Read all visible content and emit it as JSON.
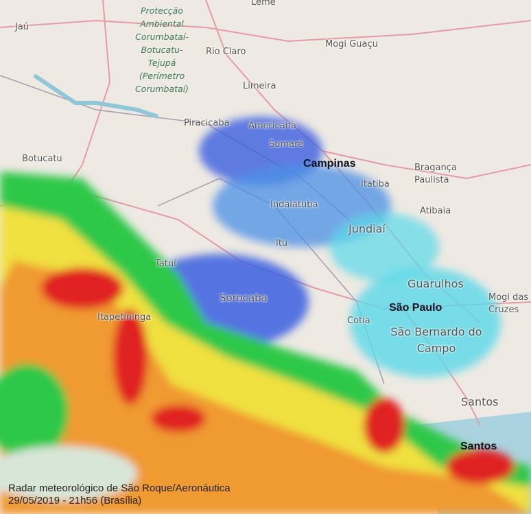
{
  "map": {
    "town_labels": [
      "Leme",
      "Jaú",
      "Rio Claro",
      "Mogi Guaçu",
      "Limeira",
      "Piracicaba",
      "Americana",
      "Sumaré",
      "Botucatu",
      "Itatiba",
      "Bragança Paulista",
      "Indaiatuba",
      "Atibaia",
      "Jundiaí",
      "Itu",
      "Tatuí",
      "Sorocaba",
      "Guarulhos",
      "Mogi das Cruzes",
      "Cotia",
      "São Bernardo do Campo",
      "Itapetininga",
      "Santos"
    ],
    "park_label": "Protecção Ambiental Corumbataí-Botucatu-Tejupá (Perímetro Corumbataí)",
    "highlighted_cities": [
      "Campinas",
      "São Paulo",
      "Santos"
    ]
  },
  "caption": {
    "line1": "Radar meteorológico de São Roque/Aeronáutica",
    "line2": "29/05/2019 - 21h56 (Brasília)"
  },
  "colors": {
    "map_bg": "#eeeae3",
    "sea": "#aad3df",
    "radar_weak": "#5ad8e8",
    "radar_light": "#3b5fe0",
    "radar_moderate": "#2ec84a",
    "radar_heavy": "#f0e040",
    "radar_intense": "#f08030",
    "radar_severe": "#e02020"
  }
}
